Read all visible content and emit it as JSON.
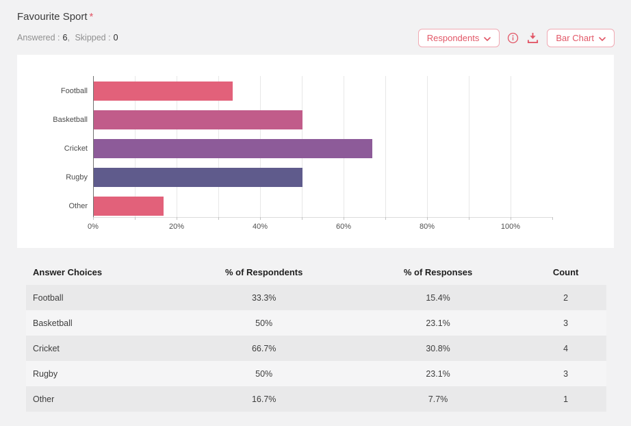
{
  "header": {
    "title": "Favourite Sport",
    "required_marker": "*",
    "answered_label": "Answered :",
    "answered_value": "6",
    "separator": ",",
    "skipped_label": "Skipped :",
    "skipped_value": "0",
    "respondents_button": "Respondents",
    "chart_type_button": "Bar Chart"
  },
  "colors": {
    "accent": "#e25767",
    "accent_border": "#f0a9b3",
    "page_background": "#f2f2f3",
    "card_background": "#ffffff",
    "row_odd": "#e9e9ea",
    "row_even": "#f5f5f6",
    "gridline": "#e7e7e7"
  },
  "chart_data": {
    "type": "bar",
    "orientation": "horizontal",
    "title": "",
    "xlabel": "",
    "ylabel": "",
    "categories": [
      "Football",
      "Basketball",
      "Cricket",
      "Rugby",
      "Other"
    ],
    "values": [
      33.3,
      50,
      66.7,
      50,
      16.7
    ],
    "unit": "% of respondents",
    "bar_colors": [
      "#e2617a",
      "#c15c8a",
      "#8d5b99",
      "#5f5b8c",
      "#e2617a"
    ],
    "xlim": [
      0,
      110
    ],
    "x_tick_labels": [
      "0%",
      "20%",
      "40%",
      "60%",
      "80%",
      "100%"
    ],
    "x_tick_values": [
      0,
      20,
      40,
      60,
      80,
      100
    ],
    "grid": "vertical every 10%",
    "legend": "none"
  },
  "table": {
    "headers": [
      "Answer Choices",
      "% of Respondents",
      "% of Responses",
      "Count"
    ],
    "rows": [
      [
        "Football",
        "33.3%",
        "15.4%",
        "2"
      ],
      [
        "Basketball",
        "50%",
        "23.1%",
        "3"
      ],
      [
        "Cricket",
        "66.7%",
        "30.8%",
        "4"
      ],
      [
        "Rugby",
        "50%",
        "23.1%",
        "3"
      ],
      [
        "Other",
        "16.7%",
        "7.7%",
        "1"
      ]
    ]
  }
}
